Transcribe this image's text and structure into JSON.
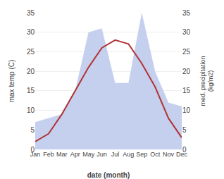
{
  "chart_data": {
    "type": "line",
    "categories": [
      "Jan",
      "Feb",
      "Mar",
      "Apr",
      "May",
      "Jun",
      "Jul",
      "Aug",
      "Sep",
      "Oct",
      "Nov",
      "Dec"
    ],
    "series": [
      {
        "type": "line",
        "color": "#b03535",
        "values": [
          2,
          4,
          9,
          15,
          21,
          26,
          28,
          27,
          22,
          16,
          8,
          3
        ]
      },
      {
        "type": "area",
        "color": "#c5d0ef",
        "axis": "y2",
        "values": [
          7,
          8,
          9,
          15,
          30,
          31,
          17,
          17,
          35,
          20,
          12,
          11
        ]
      }
    ],
    "xlabel": "date (month)",
    "ylabel": "max temp (C)",
    "y2label": "med. precipitation\n(kg/m2)",
    "ylim": [
      0,
      35
    ],
    "yticks": [
      0,
      5,
      10,
      15,
      20,
      25,
      30,
      35
    ],
    "y2lim": [
      0,
      35
    ],
    "y2ticks": [
      0,
      5,
      10,
      15,
      20,
      25,
      30,
      35
    ],
    "grid": true
  }
}
